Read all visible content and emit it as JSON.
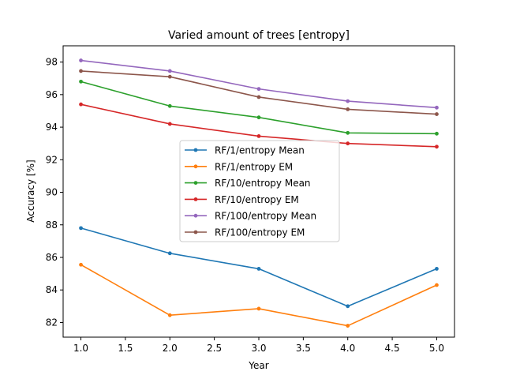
{
  "chart_data": {
    "type": "line",
    "title": "Varied amount of trees [entropy]",
    "xlabel": "Year",
    "ylabel": "Accuracy [%]",
    "xlim": [
      0.8,
      5.2
    ],
    "ylim": [
      81.1,
      99.0
    ],
    "xticks": [
      1.0,
      1.5,
      2.0,
      2.5,
      3.0,
      3.5,
      4.0,
      4.5,
      5.0
    ],
    "xtick_labels": [
      "1.0",
      "1.5",
      "2.0",
      "2.5",
      "3.0",
      "3.5",
      "4.0",
      "4.5",
      "5.0"
    ],
    "yticks": [
      82,
      84,
      86,
      88,
      90,
      92,
      94,
      96,
      98
    ],
    "ytick_labels": [
      "82",
      "84",
      "86",
      "88",
      "90",
      "92",
      "94",
      "96",
      "98"
    ],
    "grid": false,
    "legend_position": "center",
    "x": [
      1,
      2,
      3,
      4,
      5
    ],
    "series": [
      {
        "name": "RF/1/entropy Mean",
        "color": "#1f77b4",
        "values": [
          87.8,
          86.25,
          85.3,
          83.0,
          85.3
        ]
      },
      {
        "name": "RF/1/entropy EM",
        "color": "#ff7f0e",
        "values": [
          85.55,
          82.45,
          82.85,
          81.8,
          84.3
        ]
      },
      {
        "name": "RF/10/entropy Mean",
        "color": "#2ca02c",
        "values": [
          96.8,
          95.3,
          94.6,
          93.65,
          93.6
        ]
      },
      {
        "name": "RF/10/entropy EM",
        "color": "#d62728",
        "values": [
          95.4,
          94.2,
          93.45,
          93.0,
          92.8
        ]
      },
      {
        "name": "RF/100/entropy Mean",
        "color": "#9467bd",
        "values": [
          98.1,
          97.45,
          96.35,
          95.6,
          95.2
        ]
      },
      {
        "name": "RF/100/entropy EM",
        "color": "#8c564b",
        "values": [
          97.45,
          97.1,
          95.85,
          95.1,
          94.8
        ]
      }
    ]
  }
}
